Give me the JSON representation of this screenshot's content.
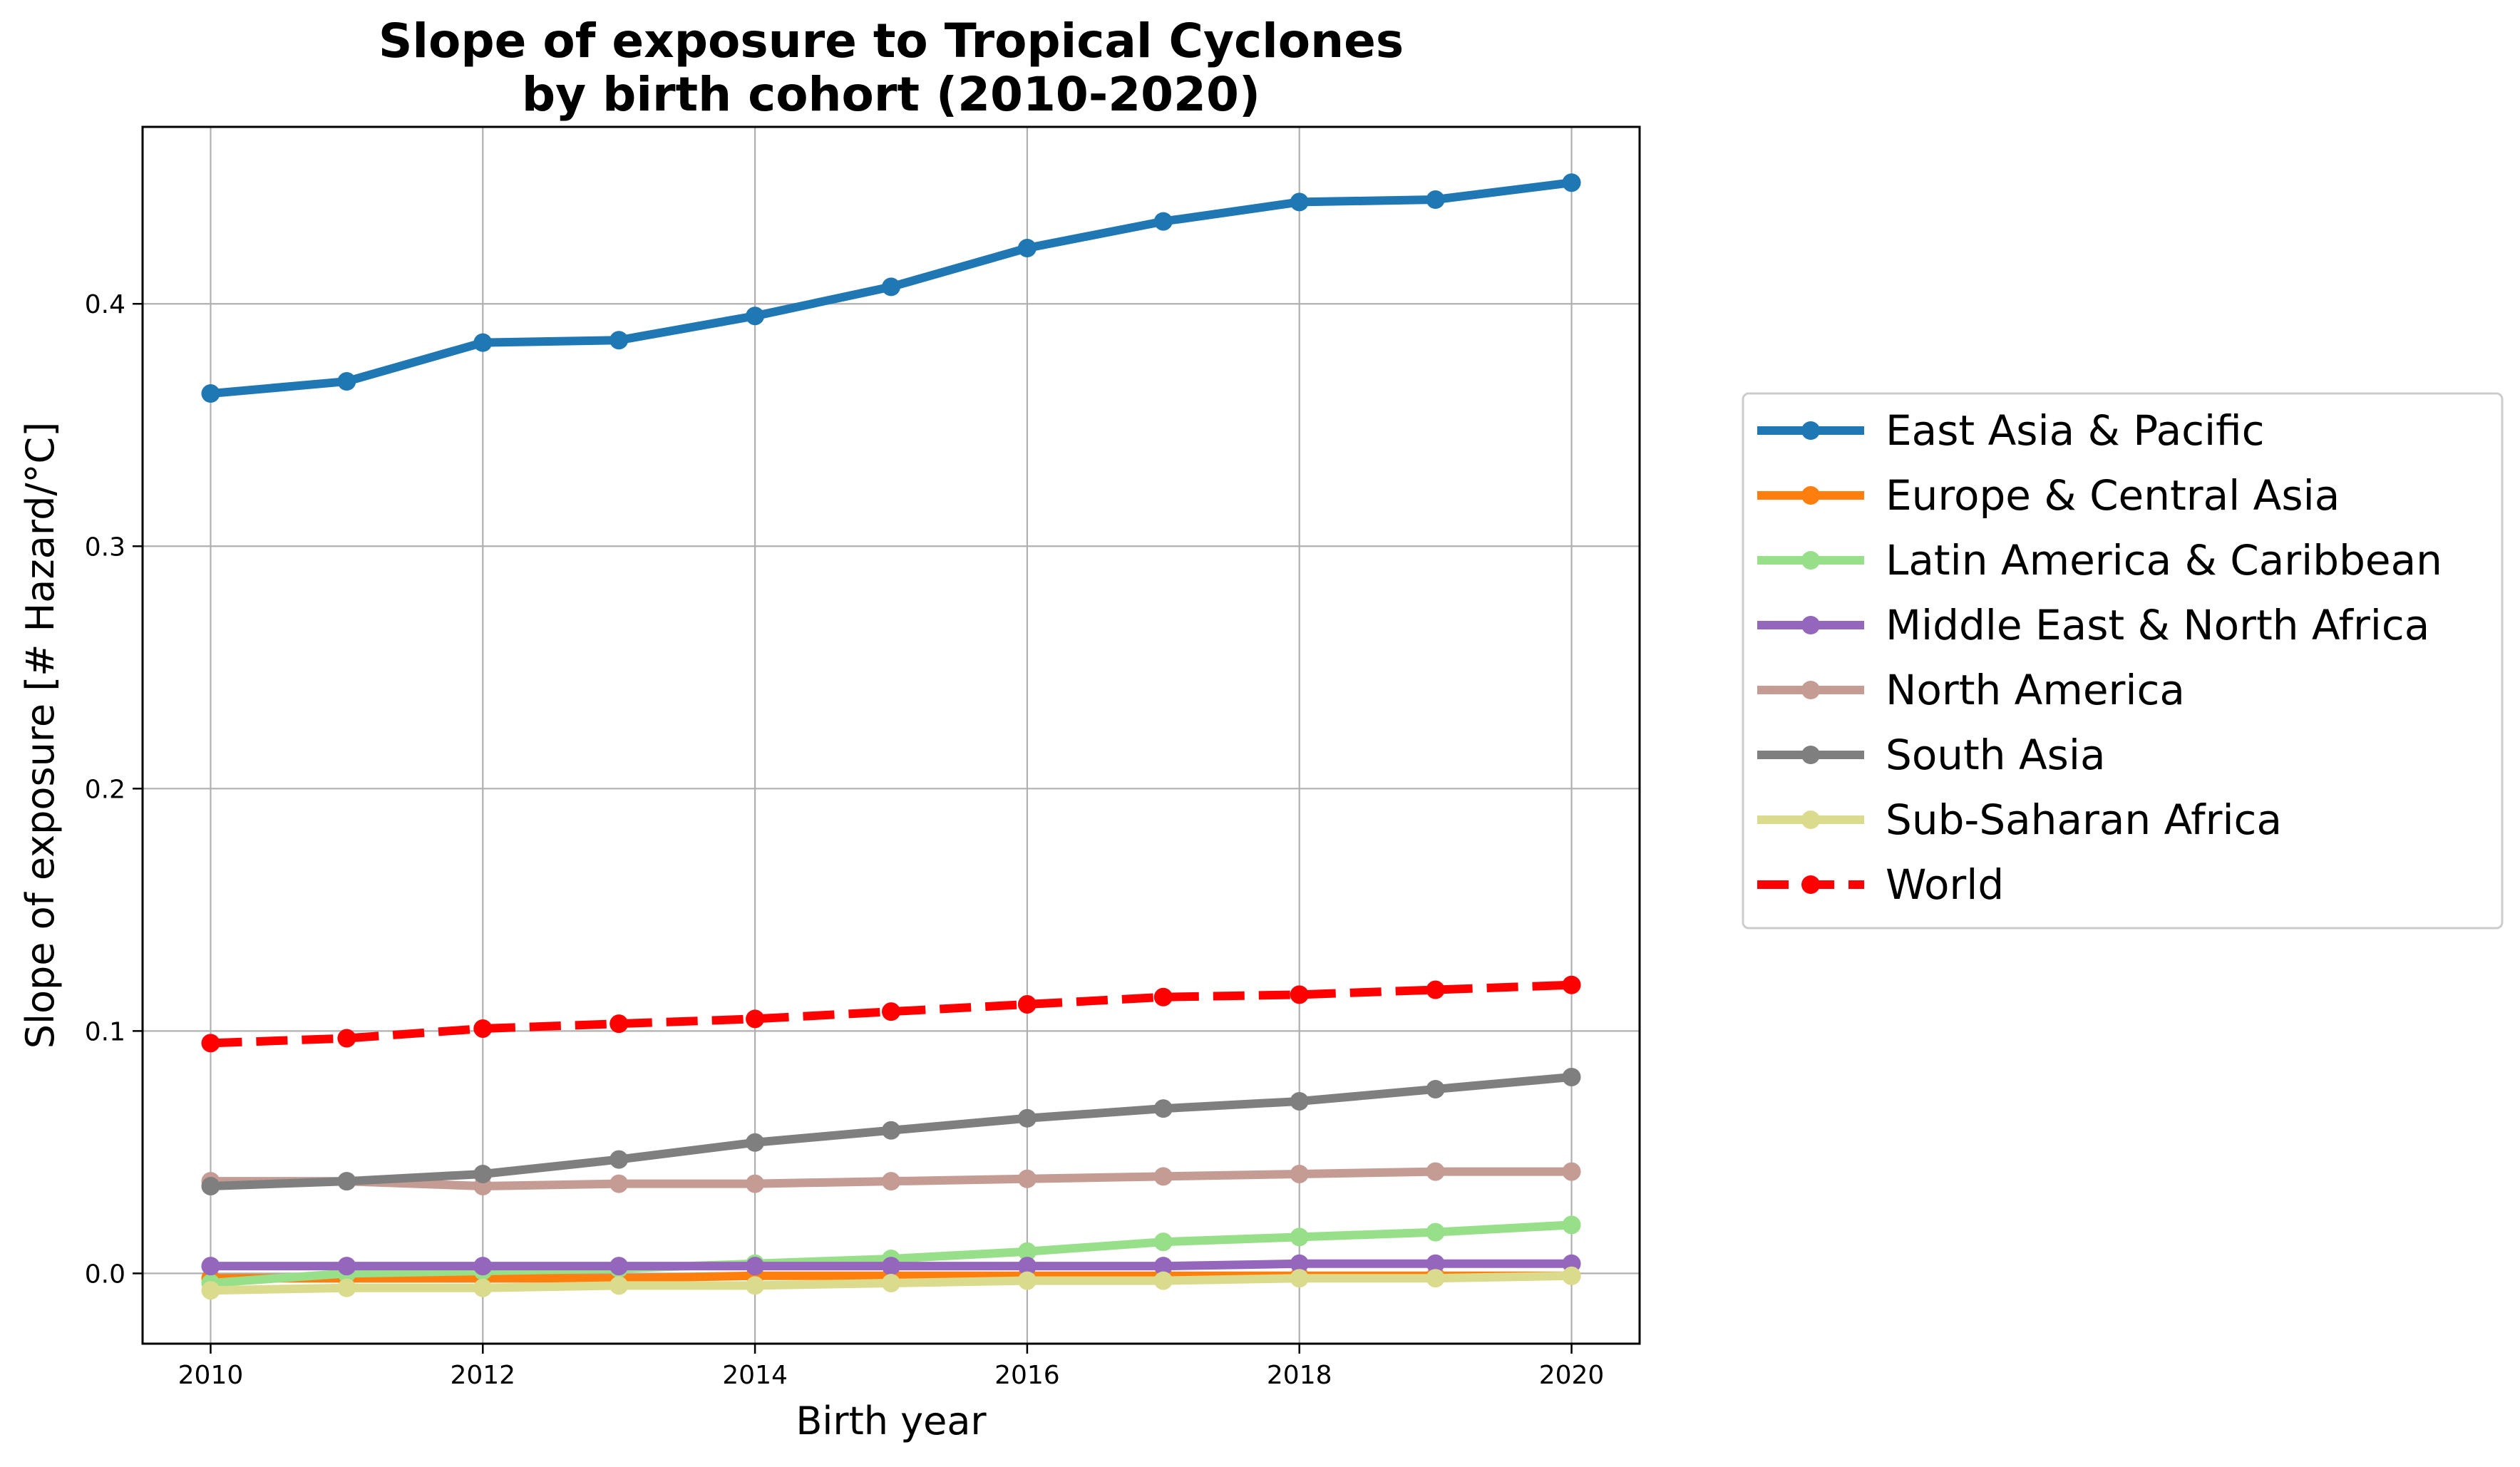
{
  "chart_data": {
    "type": "line",
    "title": "Slope of exposure to Tropical Cyclones\nby birth cohort (2010-2020)",
    "xlabel": "Birth year",
    "ylabel": "Slope of exposure [# Hazard/°C]",
    "xlim": [
      2009.5,
      2020.5
    ],
    "ylim": [
      -0.029,
      0.473
    ],
    "xticks": [
      2010,
      2012,
      2014,
      2016,
      2018,
      2020
    ],
    "yticks": [
      0.0,
      0.1,
      0.2,
      0.3,
      0.4
    ],
    "ytick_labels": [
      "0.0",
      "0.1",
      "0.2",
      "0.3",
      "0.4"
    ],
    "grid": true,
    "legend_position": "right, outside plot",
    "x": [
      2010,
      2011,
      2012,
      2013,
      2014,
      2015,
      2016,
      2017,
      2018,
      2019,
      2020
    ],
    "series": [
      {
        "name": "East Asia & Pacific",
        "color": "#1f77b4",
        "dashed": false,
        "values": [
          0.363,
          0.368,
          0.384,
          0.385,
          0.395,
          0.407,
          0.423,
          0.434,
          0.442,
          0.443,
          0.45
        ]
      },
      {
        "name": "Europe & Central Asia",
        "color": "#ff7f0e",
        "dashed": false,
        "values": [
          -0.002,
          -0.002,
          -0.002,
          -0.002,
          -0.001,
          -0.001,
          -0.001,
          -0.001,
          -0.001,
          -0.001,
          -0.001
        ]
      },
      {
        "name": "Latin America & Caribbean",
        "color": "#98df8a",
        "dashed": false,
        "values": [
          -0.004,
          0.0,
          0.001,
          0.002,
          0.004,
          0.006,
          0.009,
          0.013,
          0.015,
          0.017,
          0.02
        ]
      },
      {
        "name": "Middle East & North Africa",
        "color": "#9467bd",
        "dashed": false,
        "values": [
          0.003,
          0.003,
          0.003,
          0.003,
          0.003,
          0.003,
          0.003,
          0.003,
          0.004,
          0.004,
          0.004
        ]
      },
      {
        "name": "North America",
        "color": "#c49c94",
        "dashed": false,
        "values": [
          0.038,
          0.038,
          0.036,
          0.037,
          0.037,
          0.038,
          0.039,
          0.04,
          0.041,
          0.042,
          0.042
        ]
      },
      {
        "name": "South Asia",
        "color": "#7f7f7f",
        "dashed": false,
        "values": [
          0.036,
          0.038,
          0.041,
          0.047,
          0.054,
          0.059,
          0.064,
          0.068,
          0.071,
          0.076,
          0.081
        ]
      },
      {
        "name": "Sub-Saharan Africa",
        "color": "#dbdb8d",
        "dashed": false,
        "values": [
          -0.007,
          -0.006,
          -0.006,
          -0.005,
          -0.005,
          -0.004,
          -0.003,
          -0.003,
          -0.002,
          -0.002,
          -0.001
        ]
      },
      {
        "name": "World",
        "color": "#ff0000",
        "dashed": true,
        "values": [
          0.095,
          0.097,
          0.101,
          0.103,
          0.105,
          0.108,
          0.111,
          0.114,
          0.115,
          0.117,
          0.119
        ]
      }
    ]
  }
}
